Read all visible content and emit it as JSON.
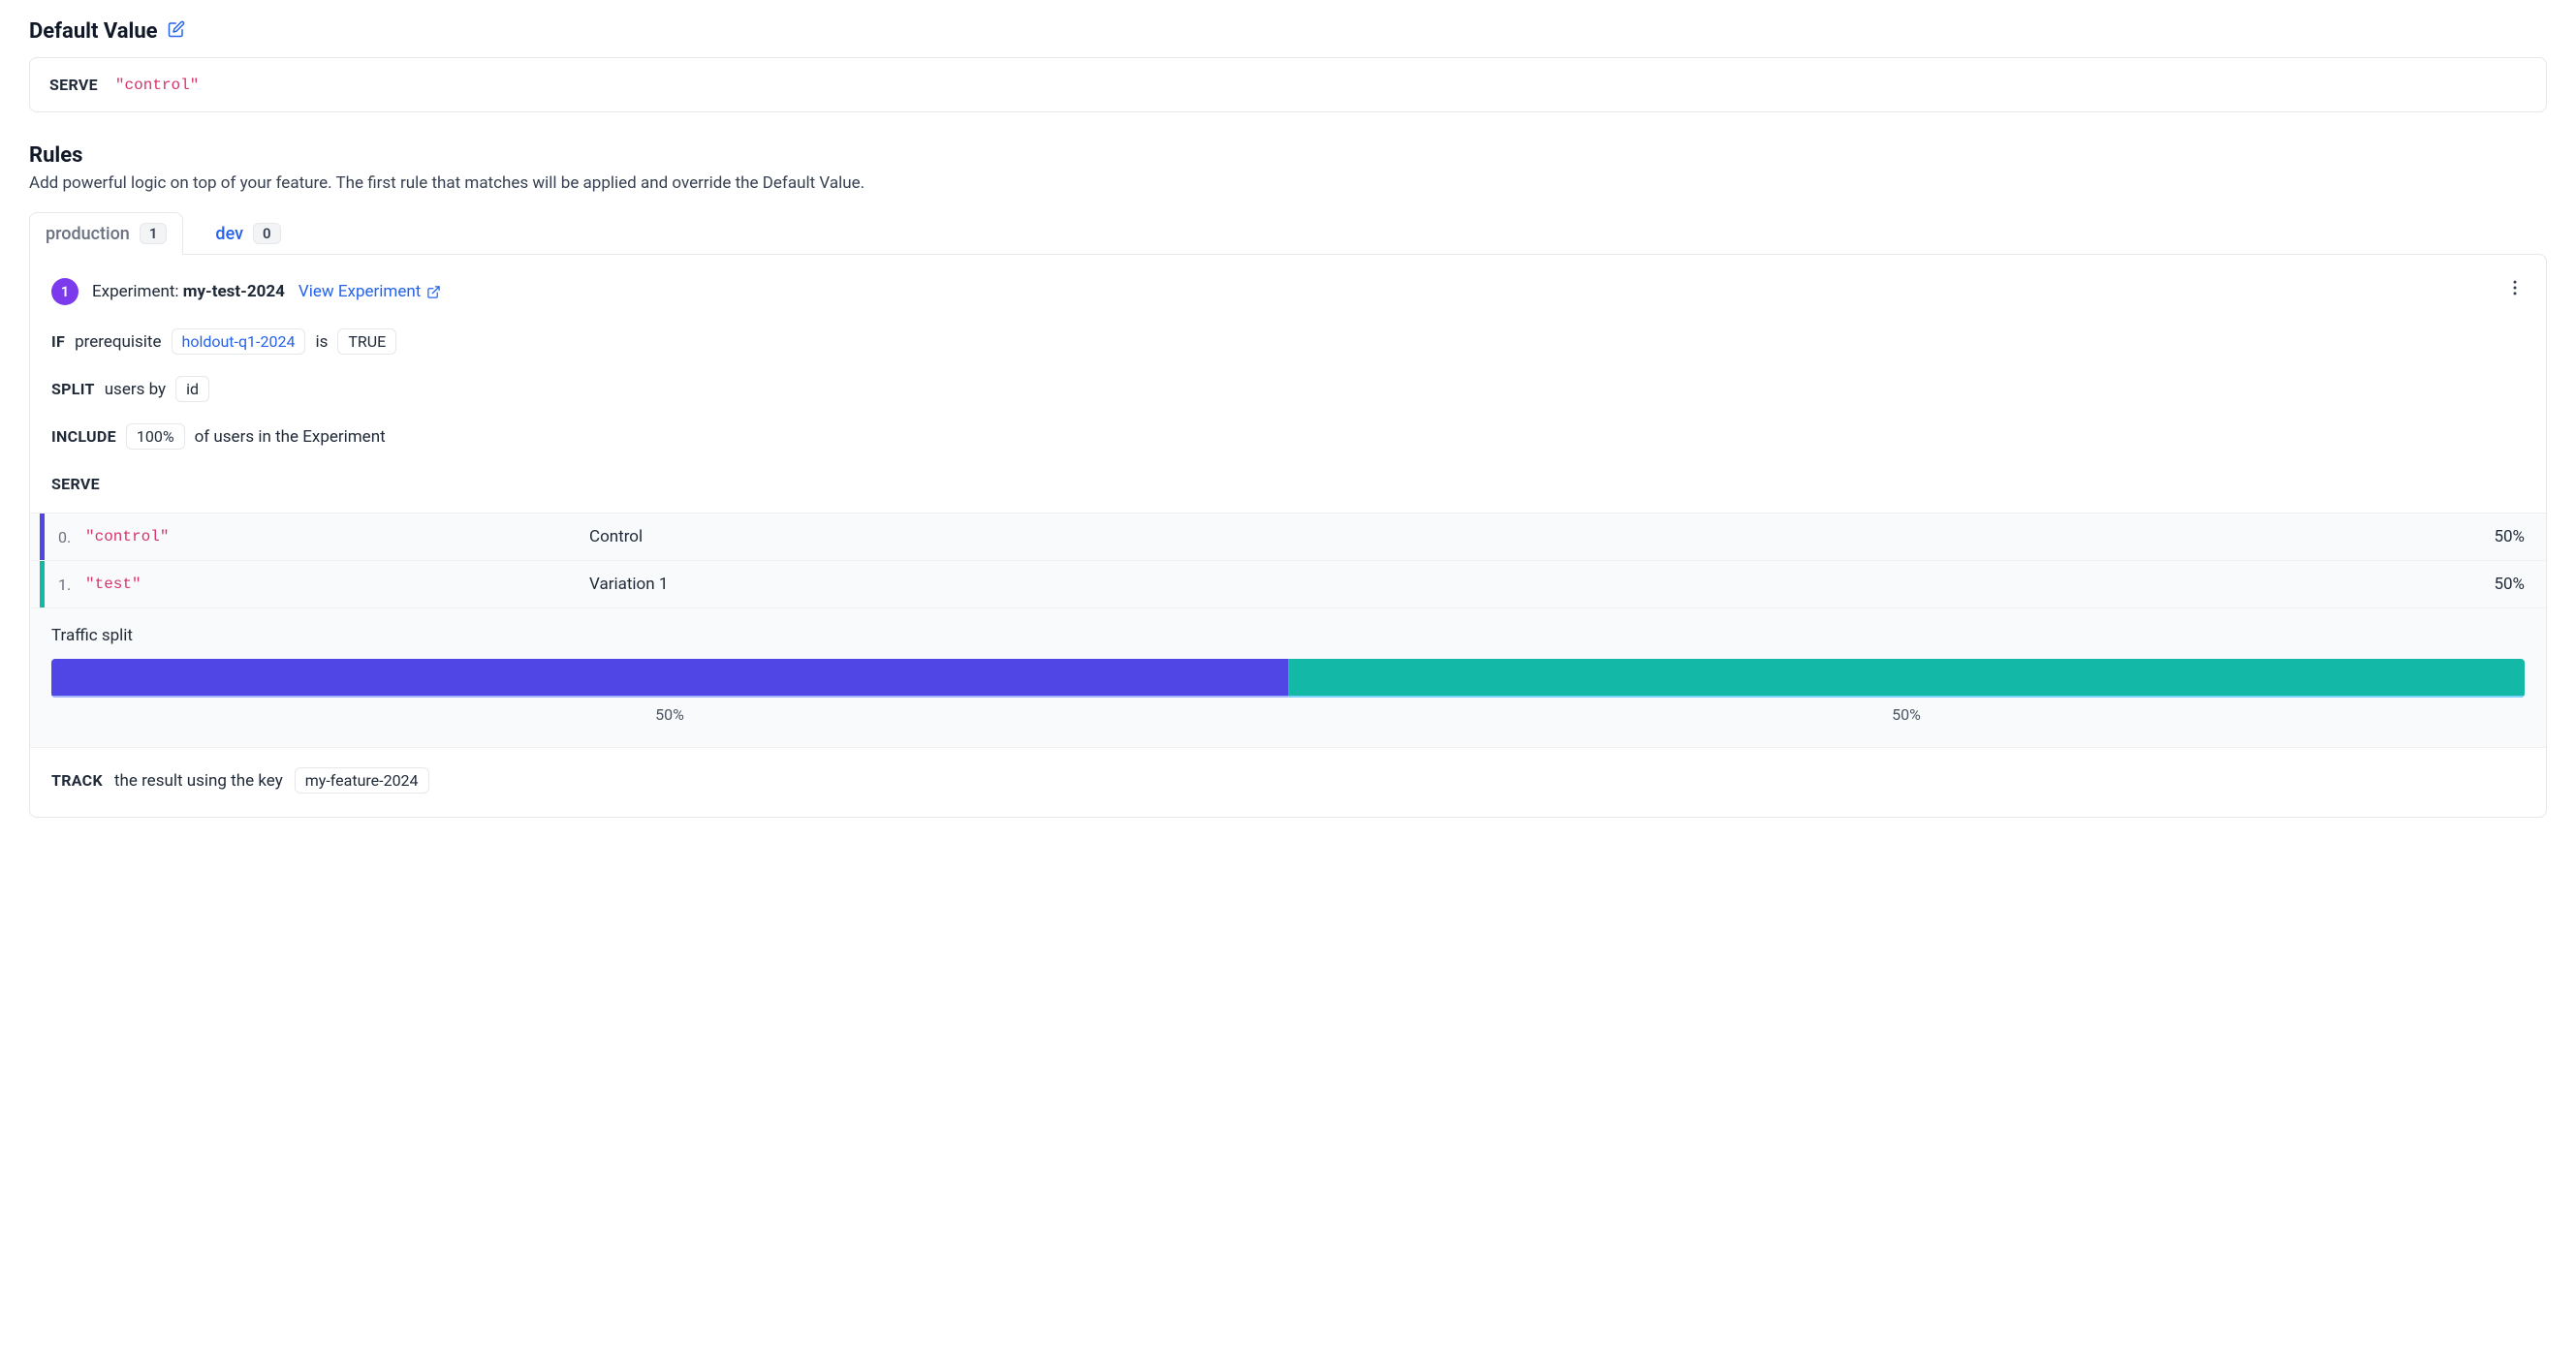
{
  "defaultValue": {
    "title": "Default Value",
    "serveLabel": "SERVE",
    "serveValue": "\"control\""
  },
  "rules": {
    "title": "Rules",
    "description": "Add powerful logic on top of your feature. The first rule that matches will be applied and override the Default Value."
  },
  "tabs": [
    {
      "label": "production",
      "count": "1",
      "active": true
    },
    {
      "label": "dev",
      "count": "0",
      "active": false
    }
  ],
  "rule": {
    "number": "1",
    "typeLabel": "Experiment:",
    "name": "my-test-2024",
    "viewLink": "View Experiment",
    "if": {
      "kw": "IF",
      "field": "prerequisite",
      "prereq": "holdout-q1-2024",
      "isLabel": "is",
      "value": "TRUE"
    },
    "split": {
      "kw": "SPLIT",
      "text": "users by",
      "field": "id"
    },
    "include": {
      "kw": "INCLUDE",
      "pct": "100%",
      "text": "of users in the Experiment"
    },
    "serveKw": "SERVE",
    "variations": [
      {
        "idx": "0.",
        "key": "\"control\"",
        "name": "Control",
        "pct": "50%",
        "color": "#4f46e5"
      },
      {
        "idx": "1.",
        "key": "\"test\"",
        "name": "Variation 1",
        "pct": "50%",
        "color": "#14b8a6"
      }
    ],
    "traffic": {
      "label": "Traffic split",
      "segments": [
        {
          "pct": 50,
          "label": "50%",
          "color": "#4f46e5"
        },
        {
          "pct": 50,
          "label": "50%",
          "color": "#14b8a6"
        }
      ]
    },
    "track": {
      "kw": "TRACK",
      "text": "the result using the key",
      "key": "my-feature-2024"
    }
  }
}
